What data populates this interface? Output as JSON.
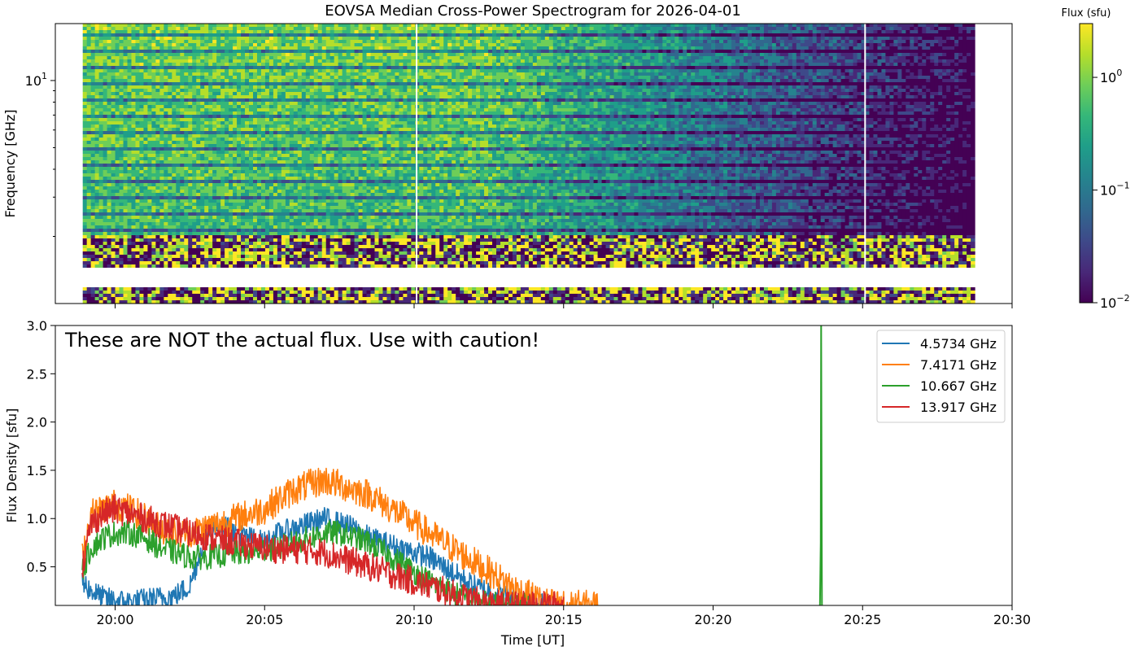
{
  "figure": {
    "title": "EOVSA Median Cross-Power Spectrogram for 2026-04-01",
    "colorbar_label": "Flux (sfu)",
    "caution_note": "These are NOT the actual flux. Use with caution!"
  },
  "colors": {
    "viridis": [
      "#440154",
      "#482878",
      "#3e4989",
      "#31688e",
      "#26828e",
      "#1f9e89",
      "#35b779",
      "#6ece58",
      "#b5de2b",
      "#fde725"
    ],
    "series": [
      "#1f77b4",
      "#ff7f0e",
      "#2ca02c",
      "#d62728"
    ]
  },
  "chart_data": [
    {
      "type": "heatmap",
      "title": "EOVSA Median Cross-Power Spectrogram for 2026-04-01",
      "xlabel": "",
      "ylabel": "Frequency [GHz]",
      "x_range": [
        "19:58:00",
        "20:30:00"
      ],
      "y_scale": "log",
      "y_range_ghz": [
        1.0,
        18.0
      ],
      "y_tick_labels": [
        {
          "value": 10,
          "label": "10",
          "exponent": "1"
        }
      ],
      "x_tick_labels": [],
      "observation_window": [
        "19:58:55",
        "20:28:45"
      ],
      "data_gap_vertical_lines": [
        "20:10:05",
        "20:25:05"
      ],
      "colorbar": {
        "label": "Flux (sfu)",
        "scale": "log",
        "range": [
          0.01,
          3.0
        ],
        "colormap": "viridis",
        "ticks": [
          {
            "value": 1,
            "base": "10",
            "exponent": "0"
          },
          {
            "value": 0.1,
            "base": "10",
            "exponent": "−1"
          },
          {
            "value": 0.01,
            "base": "10",
            "exponent": "−2"
          }
        ]
      },
      "grid": false
    },
    {
      "type": "line",
      "xlabel": "Time [UT]",
      "ylabel": "Flux Density [sfu]",
      "x_range": [
        "19:58:00",
        "20:30:00"
      ],
      "ylim": [
        0.1,
        3.0
      ],
      "x_tick_labels": [
        "20:00",
        "20:05",
        "20:10",
        "20:15",
        "20:20",
        "20:25",
        "20:30"
      ],
      "y_tick_labels": [
        "0.5",
        "1.0",
        "1.5",
        "2.0",
        "2.5",
        "3.0"
      ],
      "legend_position": "top-right",
      "grid": false,
      "series": [
        {
          "name": "4.5734 GHz",
          "t_min": [
            0.9,
            1.2,
            1.6,
            2.0,
            2.5,
            3.0,
            3.5,
            4.0,
            4.5,
            5.0,
            5.5,
            6.0,
            6.5,
            7.0,
            7.5,
            8.0,
            8.5,
            9.0,
            9.5,
            10.0,
            10.5,
            11.0,
            11.5,
            12.0,
            12.5,
            13.0,
            13.5,
            14.0,
            14.5,
            15.0,
            15.5,
            16.0,
            16.5
          ],
          "values": [
            0.35,
            0.25,
            0.18,
            0.15,
            0.14,
            0.16,
            0.18,
            0.2,
            0.3,
            0.8,
            0.95,
            0.85,
            0.8,
            0.75,
            0.85,
            0.9,
            0.95,
            1.0,
            0.95,
            0.9,
            0.8,
            0.75,
            0.7,
            0.65,
            0.6,
            0.5,
            0.4,
            0.3,
            0.25,
            0.2,
            0.15,
            0.12,
            0.1
          ],
          "noise": 0.12
        },
        {
          "name": "7.4171 GHz",
          "t_min": [
            0.9,
            1.2,
            1.6,
            2.0,
            2.5,
            3.0,
            3.5,
            4.0,
            4.5,
            5.0,
            5.5,
            6.0,
            6.5,
            7.0,
            7.5,
            8.0,
            8.5,
            9.0,
            9.5,
            10.0,
            10.5,
            11.0,
            11.5,
            12.0,
            12.5,
            13.0,
            13.5,
            14.0,
            14.5,
            15.0,
            15.5,
            16.0,
            16.5,
            17.0,
            17.5,
            18.2
          ],
          "values": [
            0.6,
            1.05,
            1.1,
            1.15,
            1.1,
            1.0,
            0.9,
            0.85,
            0.85,
            0.9,
            0.95,
            1.0,
            1.05,
            1.1,
            1.2,
            1.3,
            1.35,
            1.4,
            1.35,
            1.3,
            1.25,
            1.15,
            1.05,
            0.95,
            0.85,
            0.75,
            0.65,
            0.55,
            0.45,
            0.35,
            0.25,
            0.18,
            0.12,
            0.1,
            0.1,
            0.1
          ],
          "noise": 0.16
        },
        {
          "name": "10.667 GHz",
          "t_min": [
            0.9,
            1.2,
            1.6,
            2.0,
            2.5,
            3.0,
            3.5,
            4.0,
            4.5,
            5.0,
            5.5,
            6.0,
            6.5,
            7.0,
            7.5,
            8.0,
            8.5,
            9.0,
            9.5,
            10.0,
            10.5,
            11.0,
            11.5,
            12.0,
            12.5,
            13.0,
            13.5,
            14.0,
            14.5,
            15.0,
            15.5,
            16.0
          ],
          "values": [
            0.45,
            0.7,
            0.8,
            0.85,
            0.85,
            0.8,
            0.7,
            0.65,
            0.6,
            0.6,
            0.62,
            0.64,
            0.65,
            0.68,
            0.7,
            0.75,
            0.8,
            0.85,
            0.85,
            0.8,
            0.75,
            0.65,
            0.55,
            0.45,
            0.35,
            0.28,
            0.2,
            0.15,
            0.12,
            0.1,
            0.1,
            0.1
          ],
          "noise": 0.13,
          "spike": {
            "t_min": 25.6,
            "value": 3.0
          }
        },
        {
          "name": "13.917 GHz",
          "t_min": [
            0.9,
            1.2,
            1.6,
            2.0,
            2.5,
            3.0,
            3.5,
            4.0,
            4.5,
            5.0,
            5.5,
            6.0,
            6.5,
            7.0,
            7.5,
            8.0,
            8.5,
            9.0,
            9.5,
            10.0,
            10.5,
            11.0,
            11.5,
            12.0,
            12.5,
            13.0,
            13.5,
            14.0,
            14.5,
            15.0,
            15.5,
            16.0,
            16.5,
            17.0
          ],
          "values": [
            0.5,
            0.95,
            1.05,
            1.1,
            1.05,
            1.0,
            0.95,
            0.9,
            0.85,
            0.82,
            0.78,
            0.75,
            0.72,
            0.7,
            0.68,
            0.68,
            0.67,
            0.65,
            0.6,
            0.55,
            0.5,
            0.45,
            0.4,
            0.35,
            0.3,
            0.25,
            0.2,
            0.15,
            0.12,
            0.1,
            0.1,
            0.1,
            0.1,
            0.1
          ],
          "noise": 0.15
        }
      ]
    }
  ]
}
